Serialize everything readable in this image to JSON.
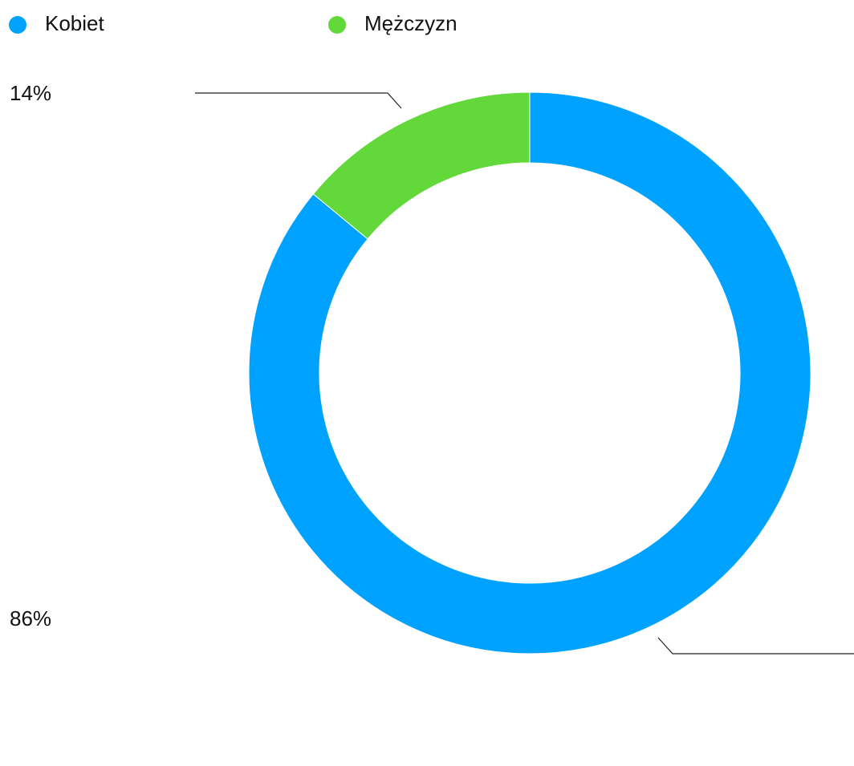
{
  "chart_data": {
    "type": "pie",
    "donut": true,
    "categories": [
      "Kobiet",
      "Mężczyzn"
    ],
    "values": [
      86,
      14
    ],
    "value_labels": [
      "86%",
      "14%"
    ],
    "colors": [
      "#00a2ff",
      "#62d83a"
    ]
  }
}
